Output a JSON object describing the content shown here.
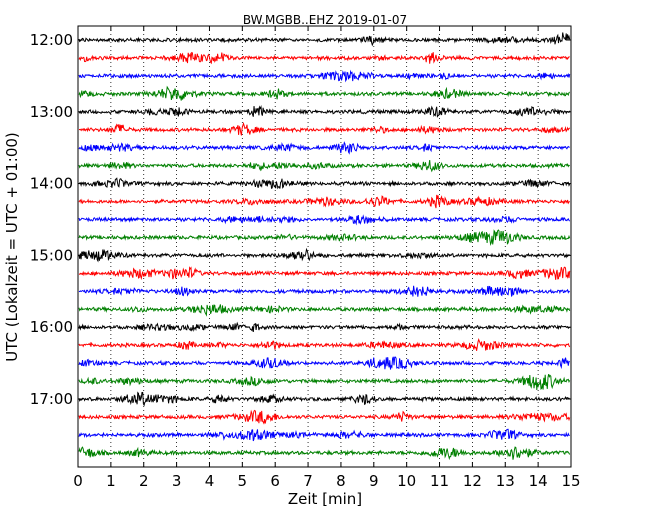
{
  "chart_data": {
    "type": "line",
    "title": "BW.MGBB..EHZ 2019-01-07",
    "xlabel": "Zeit  [min]",
    "ylabel": "UTC (Lokalzeit = UTC + 01:00)",
    "xlim": [
      0,
      15
    ],
    "x_ticks": [
      "0",
      "1",
      "2",
      "3",
      "4",
      "5",
      "6",
      "7",
      "8",
      "9",
      "10",
      "11",
      "12",
      "13",
      "14",
      "15"
    ],
    "y_ticks": [
      "12:00",
      "13:00",
      "14:00",
      "15:00",
      "16:00",
      "17:00"
    ],
    "grid": "vertical dotted",
    "traces": [
      {
        "start": "12:00",
        "color": "#000000"
      },
      {
        "start": "12:15",
        "color": "#ff0000"
      },
      {
        "start": "12:30",
        "color": "#0000ff"
      },
      {
        "start": "12:45",
        "color": "#008000"
      },
      {
        "start": "13:00",
        "color": "#000000"
      },
      {
        "start": "13:15",
        "color": "#ff0000"
      },
      {
        "start": "13:30",
        "color": "#0000ff"
      },
      {
        "start": "13:45",
        "color": "#008000"
      },
      {
        "start": "14:00",
        "color": "#000000"
      },
      {
        "start": "14:15",
        "color": "#ff0000"
      },
      {
        "start": "14:30",
        "color": "#0000ff"
      },
      {
        "start": "14:45",
        "color": "#008000"
      },
      {
        "start": "15:00",
        "color": "#000000"
      },
      {
        "start": "15:15",
        "color": "#ff0000"
      },
      {
        "start": "15:30",
        "color": "#0000ff"
      },
      {
        "start": "15:45",
        "color": "#008000"
      },
      {
        "start": "16:00",
        "color": "#000000"
      },
      {
        "start": "16:15",
        "color": "#ff0000"
      },
      {
        "start": "16:30",
        "color": "#0000ff"
      },
      {
        "start": "16:45",
        "color": "#008000"
      },
      {
        "start": "17:00",
        "color": "#000000"
      },
      {
        "start": "17:15",
        "color": "#ff0000"
      },
      {
        "start": "17:30",
        "color": "#0000ff"
      },
      {
        "start": "17:45",
        "color": "#008000"
      }
    ]
  }
}
